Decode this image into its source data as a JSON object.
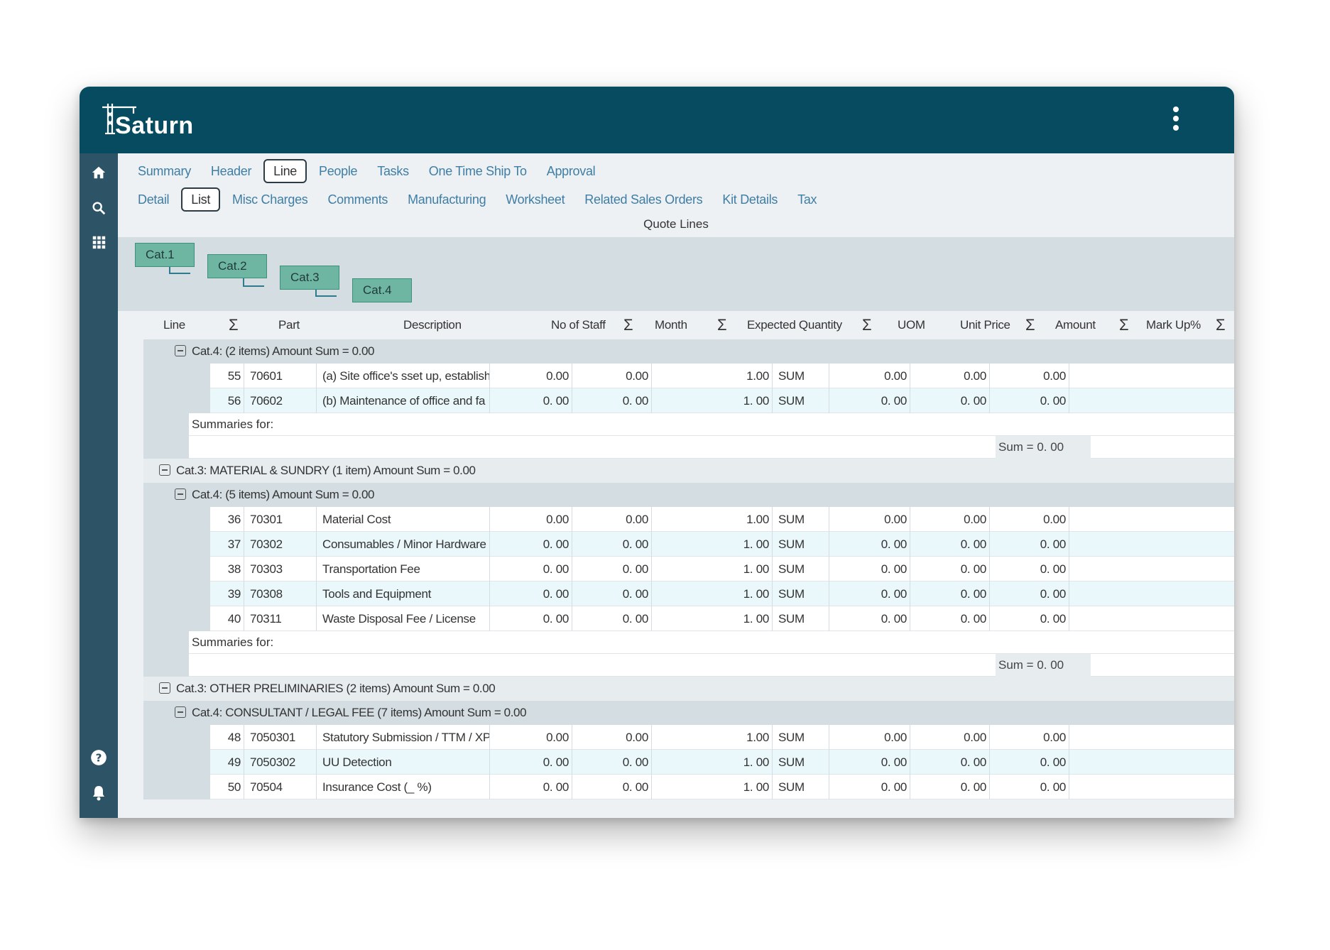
{
  "app": {
    "name": "Saturn"
  },
  "nav": {
    "primary_tabs": [
      "Summary",
      "Header",
      "Line",
      "People",
      "Tasks",
      "One Time Ship To",
      "Approval"
    ],
    "primary_active": "Line",
    "secondary_tabs": [
      "Detail",
      "List",
      "Misc Charges",
      "Comments",
      "Manufacturing",
      "Worksheet",
      "Related Sales Orders",
      "Kit Details",
      "Tax"
    ],
    "secondary_active": "List"
  },
  "grid_title": "Quote Lines",
  "group_chips": [
    "Cat.1",
    "Cat.2",
    "Cat.3",
    "Cat.4"
  ],
  "columns": {
    "line": "Line",
    "part": "Part",
    "description": "Description",
    "no_of_staff": "No of Staff",
    "month": "Month",
    "expected_quantity": "Expected Quantity",
    "uom": "UOM",
    "unit_price": "Unit Price",
    "amount": "Amount",
    "markup": "Mark Up%",
    "sigma": "Σ"
  },
  "groups": {
    "g1": {
      "header": "Cat.4: (2 items) Amount Sum = 0.00",
      "rows": [
        {
          "line": "55",
          "part": "70601",
          "description": "(a) Site office's sset up, establish",
          "staff": "0.00",
          "month": "0.00",
          "qty": "1.00",
          "uom": "SUM",
          "price": "0.00",
          "amount": "0.00",
          "markup": "0.00"
        },
        {
          "line": "56",
          "part": "70602",
          "description": "(b) Maintenance of office and fa",
          "staff": "0. 00",
          "month": "0. 00",
          "qty": "1. 00",
          "uom": "SUM",
          "price": "0. 00",
          "amount": "0. 00",
          "markup": "0. 00"
        }
      ],
      "summaries_label": "Summaries for:",
      "sum": "Sum = 0. 00"
    },
    "g2": {
      "header": "Cat.3: MATERIAL & SUNDRY (1 item) Amount Sum = 0.00",
      "sub_header": "Cat.4: (5 items) Amount Sum = 0.00",
      "rows": [
        {
          "line": "36",
          "part": "70301",
          "description": "Material Cost",
          "staff": "0.00",
          "month": "0.00",
          "qty": "1.00",
          "uom": "SUM",
          "price": "0.00",
          "amount": "0.00",
          "markup": "0.00"
        },
        {
          "line": "37",
          "part": "70302",
          "description": "Consumables / Minor Hardware",
          "staff": "0. 00",
          "month": "0. 00",
          "qty": "1. 00",
          "uom": "SUM",
          "price": "0. 00",
          "amount": "0. 00",
          "markup": "0. 00"
        },
        {
          "line": "38",
          "part": "70303",
          "description": "Transportation Fee",
          "staff": "0. 00",
          "month": "0. 00",
          "qty": "1. 00",
          "uom": "SUM",
          "price": "0. 00",
          "amount": "0. 00",
          "markup": "0. 00"
        },
        {
          "line": "39",
          "part": "70308",
          "description": "Tools and Equipment",
          "staff": "0. 00",
          "month": "0. 00",
          "qty": "1. 00",
          "uom": "SUM",
          "price": "0. 00",
          "amount": "0. 00",
          "markup": "0. 00"
        },
        {
          "line": "40",
          "part": "70311",
          "description": "Waste Disposal Fee / License",
          "staff": "0. 00",
          "month": "0. 00",
          "qty": "1. 00",
          "uom": "SUM",
          "price": "0. 00",
          "amount": "0. 00",
          "markup": "0. 00"
        }
      ],
      "summaries_label": "Summaries for:",
      "sum": "Sum = 0. 00"
    },
    "g3": {
      "header": "Cat.3: OTHER PRELIMINARIES (2 items) Amount Sum = 0.00",
      "sub_header": "Cat.4: CONSULTANT / LEGAL FEE (7 items) Amount Sum = 0.00",
      "rows": [
        {
          "line": "48",
          "part": "7050301",
          "description": "Statutory Submission / TTM / XP",
          "staff": "0.00",
          "month": "0.00",
          "qty": "1.00",
          "uom": "SUM",
          "price": "0.00",
          "amount": "0.00",
          "markup": "0.00"
        },
        {
          "line": "49",
          "part": "7050302",
          "description": "UU Detection",
          "staff": "0. 00",
          "month": "0. 00",
          "qty": "1. 00",
          "uom": "SUM",
          "price": "0. 00",
          "amount": "0. 00",
          "markup": "0. 00"
        },
        {
          "line": "50",
          "part": "70504",
          "description": "Insurance Cost (_ %)",
          "staff": "0. 00",
          "month": "0. 00",
          "qty": "1. 00",
          "uom": "SUM",
          "price": "0. 00",
          "amount": "0. 00",
          "markup": "0. 00"
        }
      ]
    }
  }
}
